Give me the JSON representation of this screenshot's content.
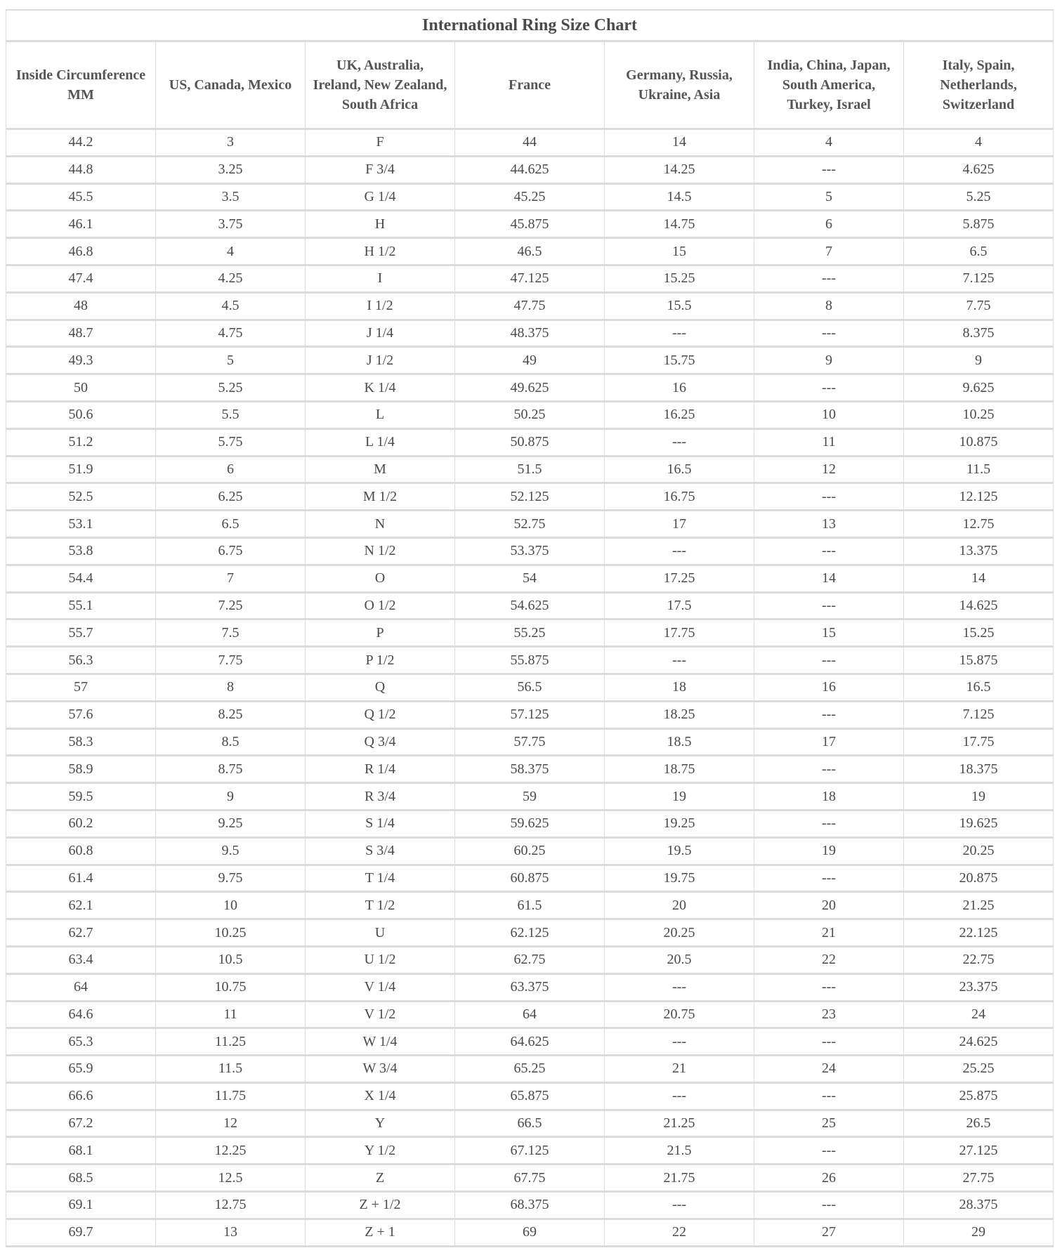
{
  "title": "International Ring Size Chart",
  "headers": [
    "Inside Circumference MM",
    "US, Canada, Mexico",
    "UK, Australia, Ireland, New Zealand, South Africa",
    "France",
    "Germany, Russia, Ukraine, Asia",
    "India, China, Japan, South America, Turkey, Israel",
    "Italy, Spain, Netherlands, Switzerland"
  ],
  "rows": [
    [
      "44.2",
      "3",
      "F",
      "44",
      "14",
      "4",
      "4"
    ],
    [
      "44.8",
      "3.25",
      "F 3/4",
      "44.625",
      "14.25",
      "---",
      "4.625"
    ],
    [
      "45.5",
      "3.5",
      "G 1/4",
      "45.25",
      "14.5",
      "5",
      "5.25"
    ],
    [
      "46.1",
      "3.75",
      "H",
      "45.875",
      "14.75",
      "6",
      "5.875"
    ],
    [
      "46.8",
      "4",
      "H 1/2",
      "46.5",
      "15",
      "7",
      "6.5"
    ],
    [
      "47.4",
      "4.25",
      "I",
      "47.125",
      "15.25",
      "---",
      "7.125"
    ],
    [
      "48",
      "4.5",
      "I 1/2",
      "47.75",
      "15.5",
      "8",
      "7.75"
    ],
    [
      "48.7",
      "4.75",
      "J 1/4",
      "48.375",
      "---",
      "---",
      "8.375"
    ],
    [
      "49.3",
      "5",
      "J 1/2",
      "49",
      "15.75",
      "9",
      "9"
    ],
    [
      "50",
      "5.25",
      "K 1/4",
      "49.625",
      "16",
      "---",
      "9.625"
    ],
    [
      "50.6",
      "5.5",
      "L",
      "50.25",
      "16.25",
      "10",
      "10.25"
    ],
    [
      "51.2",
      "5.75",
      "L 1/4",
      "50.875",
      "---",
      "11",
      "10.875"
    ],
    [
      "51.9",
      "6",
      "M",
      "51.5",
      "16.5",
      "12",
      "11.5"
    ],
    [
      "52.5",
      "6.25",
      "M 1/2",
      "52.125",
      "16.75",
      "---",
      "12.125"
    ],
    [
      "53.1",
      "6.5",
      "N",
      "52.75",
      "17",
      "13",
      "12.75"
    ],
    [
      "53.8",
      "6.75",
      "N 1/2",
      "53.375",
      "---",
      "---",
      "13.375"
    ],
    [
      "54.4",
      "7",
      "O",
      "54",
      "17.25",
      "14",
      "14"
    ],
    [
      "55.1",
      "7.25",
      "O 1/2",
      "54.625",
      "17.5",
      "---",
      "14.625"
    ],
    [
      "55.7",
      "7.5",
      "P",
      "55.25",
      "17.75",
      "15",
      "15.25"
    ],
    [
      "56.3",
      "7.75",
      "P 1/2",
      "55.875",
      "---",
      "---",
      "15.875"
    ],
    [
      "57",
      "8",
      "Q",
      "56.5",
      "18",
      "16",
      "16.5"
    ],
    [
      "57.6",
      "8.25",
      "Q 1/2",
      "57.125",
      "18.25",
      "---",
      "7.125"
    ],
    [
      "58.3",
      "8.5",
      "Q 3/4",
      "57.75",
      "18.5",
      "17",
      "17.75"
    ],
    [
      "58.9",
      "8.75",
      "R 1/4",
      "58.375",
      "18.75",
      "---",
      "18.375"
    ],
    [
      "59.5",
      "9",
      "R 3/4",
      "59",
      "19",
      "18",
      "19"
    ],
    [
      "60.2",
      "9.25",
      "S 1/4",
      "59.625",
      "19.25",
      "---",
      "19.625"
    ],
    [
      "60.8",
      "9.5",
      "S 3/4",
      "60.25",
      "19.5",
      "19",
      "20.25"
    ],
    [
      "61.4",
      "9.75",
      "T 1/4",
      "60.875",
      "19.75",
      "---",
      "20.875"
    ],
    [
      "62.1",
      "10",
      "T 1/2",
      "61.5",
      "20",
      "20",
      "21.25"
    ],
    [
      "62.7",
      "10.25",
      "U",
      "62.125",
      "20.25",
      "21",
      "22.125"
    ],
    [
      "63.4",
      "10.5",
      "U 1/2",
      "62.75",
      "20.5",
      "22",
      "22.75"
    ],
    [
      "64",
      "10.75",
      "V 1/4",
      "63.375",
      "---",
      "---",
      "23.375"
    ],
    [
      "64.6",
      "11",
      "V 1/2",
      "64",
      "20.75",
      "23",
      "24"
    ],
    [
      "65.3",
      "11.25",
      "W 1/4",
      "64.625",
      "---",
      "---",
      "24.625"
    ],
    [
      "65.9",
      "11.5",
      "W 3/4",
      "65.25",
      "21",
      "24",
      "25.25"
    ],
    [
      "66.6",
      "11.75",
      "X 1/4",
      "65.875",
      "---",
      "---",
      "25.875"
    ],
    [
      "67.2",
      "12",
      "Y",
      "66.5",
      "21.25",
      "25",
      "26.5"
    ],
    [
      "68.1",
      "12.25",
      "Y 1/2",
      "67.125",
      "21.5",
      "---",
      "27.125"
    ],
    [
      "68.5",
      "12.5",
      "Z",
      "67.75",
      "21.75",
      "26",
      "27.75"
    ],
    [
      "69.1",
      "12.75",
      "Z + 1/2",
      "68.375",
      "---",
      "---",
      "28.375"
    ],
    [
      "69.7",
      "13",
      "Z + 1",
      "69",
      "22",
      "27",
      "29"
    ]
  ]
}
